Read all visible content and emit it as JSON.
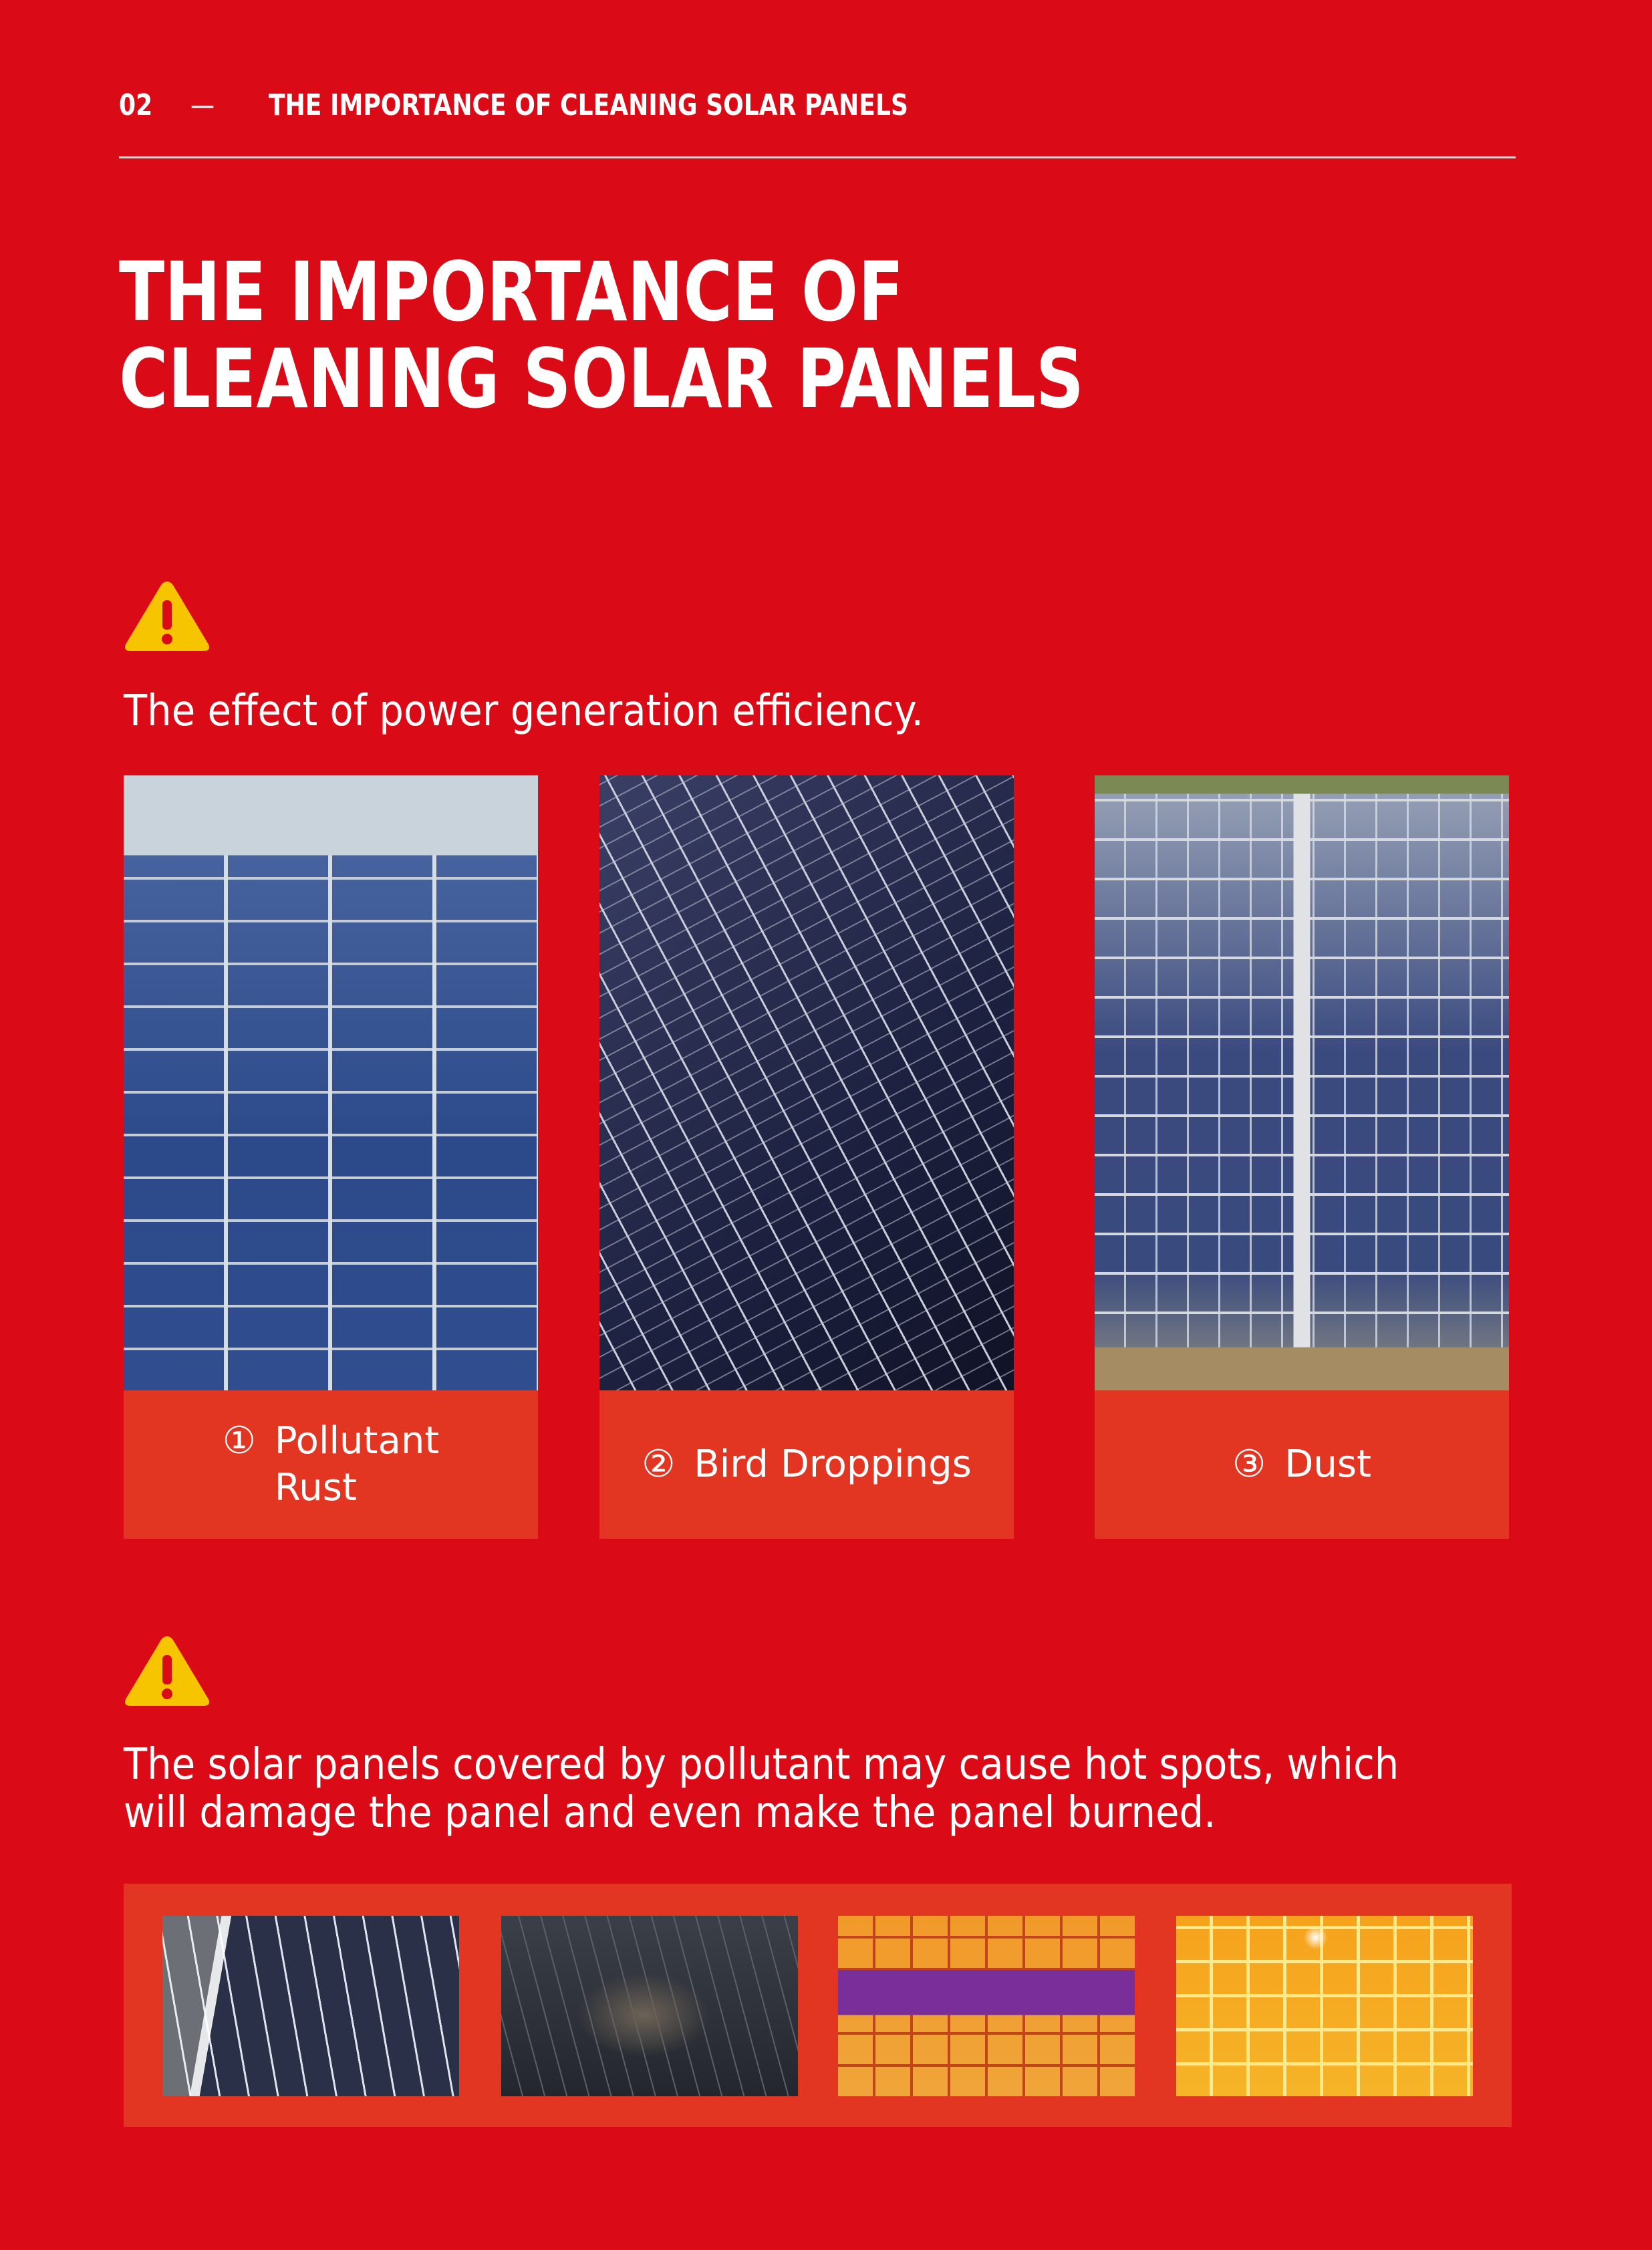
{
  "header": {
    "page_number": "02",
    "separator": "—",
    "section_title": "THE IMPORTANCE OF CLEANING SOLAR PANELS"
  },
  "title": {
    "line1": "THE IMPORTANCE OF",
    "line2": "CLEANING SOLAR PANELS"
  },
  "section1": {
    "icon": "warning-icon",
    "text": "The effect of power generation efficiency.",
    "items": [
      {
        "number": "①",
        "label_line1": "Pollutant",
        "label_line2": "Rust"
      },
      {
        "number": "②",
        "label_line1": "Bird Droppings"
      },
      {
        "number": "③",
        "label_line1": "Dust"
      }
    ]
  },
  "section2": {
    "icon": "warning-icon",
    "text_line1": "The solar panels covered by pollutant may cause hot spots, which",
    "text_line2": "will damage the panel and even make the panel burned."
  },
  "colors": {
    "background": "#da0a16",
    "label_box": "#e33622",
    "warning": "#f7c400"
  }
}
